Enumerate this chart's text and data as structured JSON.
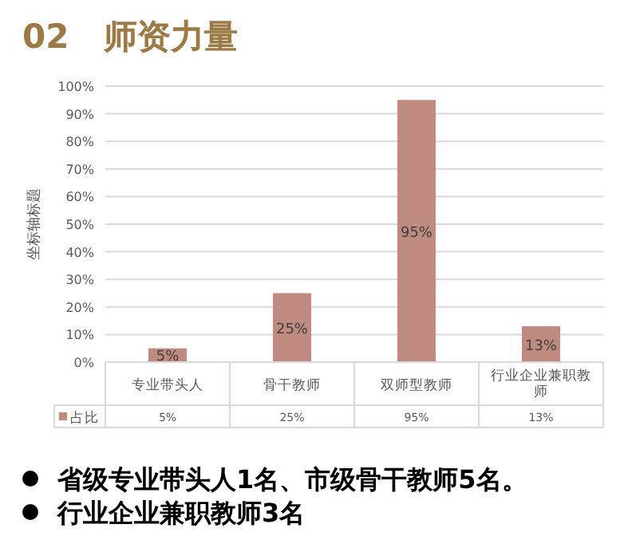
{
  "chart_data": {
    "type": "bar",
    "title": "02 师资力量",
    "ylabel": "坐标轴标题",
    "categories": [
      "专业带头人",
      "骨干教师",
      "双师型教师",
      "行业企业兼职教师"
    ],
    "series": [
      {
        "name": "占比",
        "color": "#bf8a80",
        "values": [
          5,
          25,
          95,
          13
        ],
        "value_labels": [
          "5%",
          "25%",
          "95%",
          "13%"
        ]
      }
    ],
    "ylim": [
      0,
      100
    ],
    "yticks": [
      {
        "value": 0,
        "label": "0%"
      },
      {
        "value": 10,
        "label": "10%"
      },
      {
        "value": 20,
        "label": "20%"
      },
      {
        "value": 30,
        "label": "30%"
      },
      {
        "value": 40,
        "label": "40%"
      },
      {
        "value": 50,
        "label": "50%"
      },
      {
        "value": 60,
        "label": "60%"
      },
      {
        "value": 70,
        "label": "70%"
      },
      {
        "value": 80,
        "label": "80%"
      },
      {
        "value": 90,
        "label": "90%"
      },
      {
        "value": 100,
        "label": "100%"
      }
    ],
    "grid": "y",
    "legend": "bottom left",
    "annotations": [
      "省级专业带头人1名、市级骨干教师5名。",
      "行业企业兼职教师3名"
    ]
  }
}
